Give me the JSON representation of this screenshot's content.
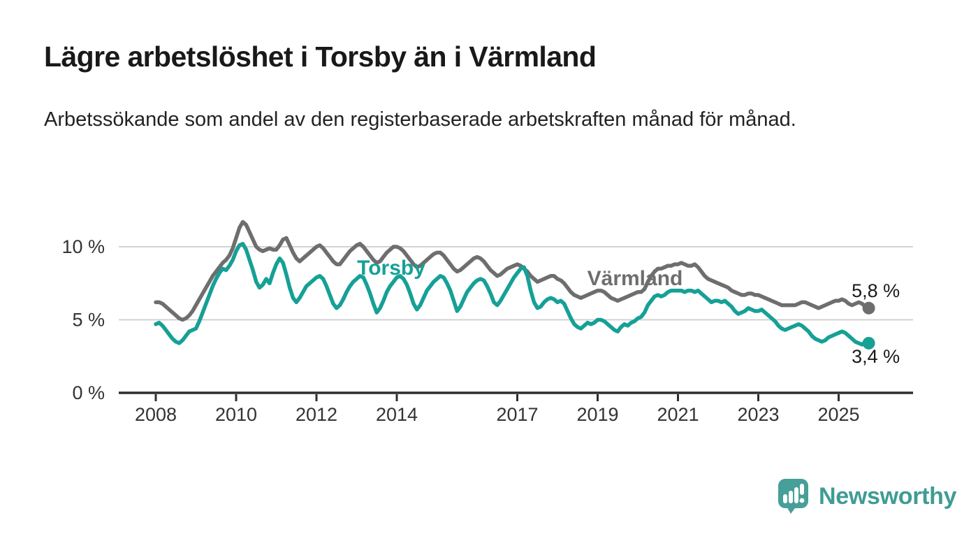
{
  "page": {
    "title": "Lägre arbetslöshet i Torsby än i Värmland",
    "subtitle": "Arbetssökande som andel av den registerbaserade arbetskraften månad för månad."
  },
  "branding": {
    "name": "Newsworthy",
    "logo_icon": "speech-bubble-bar-chart",
    "color": "#469f98"
  },
  "colors": {
    "background": "#ffffff",
    "title_text": "#191919",
    "subtitle_text": "#222222",
    "axis_line": "#2e2e2e",
    "axis_text": "#333333",
    "gridline": "#cdcdcd",
    "torsby_teal": "#16a096",
    "varmland_gray": "#6e6e6e",
    "value_label_text": "#1a1a1a"
  },
  "chart_data": {
    "type": "line",
    "title": "Lägre arbetslöshet i Torsby än i Värmland",
    "subtitle": "Arbetssökande som andel av den registerbaserade arbetskraften månad för månad.",
    "unit": "%",
    "x_frequency": "monthly",
    "x_start": "2008-01",
    "x_end": "2025-10",
    "ylim": [
      0,
      12
    ],
    "grid": "horizontal-only",
    "legend": "inline-series-labels",
    "yticks": [
      {
        "value": 0,
        "label": "0 %"
      },
      {
        "value": 5,
        "label": "5 %"
      },
      {
        "value": 10,
        "label": "10 %"
      }
    ],
    "xticks": [
      {
        "year": 2008,
        "label": "2008"
      },
      {
        "year": 2010,
        "label": "2010"
      },
      {
        "year": 2012,
        "label": "2012"
      },
      {
        "year": 2014,
        "label": "2014"
      },
      {
        "year": 2017,
        "label": "2017"
      },
      {
        "year": 2019,
        "label": "2019"
      },
      {
        "year": 2021,
        "label": "2021"
      },
      {
        "year": 2023,
        "label": "2023"
      },
      {
        "year": 2025,
        "label": "2025"
      }
    ],
    "series": [
      {
        "name": "Värmland",
        "color": "#6e6e6e",
        "end_value": 5.8,
        "end_value_label": "5,8 %",
        "values": [
          6.2,
          6.2,
          6.1,
          5.9,
          5.7,
          5.5,
          5.3,
          5.1,
          5.0,
          5.1,
          5.3,
          5.6,
          6.0,
          6.4,
          6.8,
          7.2,
          7.6,
          8.0,
          8.3,
          8.6,
          8.9,
          9.1,
          9.4,
          9.9,
          10.6,
          11.3,
          11.7,
          11.5,
          11.0,
          10.5,
          10.0,
          9.8,
          9.7,
          9.8,
          9.9,
          9.8,
          9.8,
          10.1,
          10.5,
          10.6,
          10.1,
          9.6,
          9.2,
          9.0,
          9.2,
          9.4,
          9.6,
          9.8,
          10.0,
          10.1,
          9.9,
          9.6,
          9.3,
          9.0,
          8.8,
          8.8,
          9.1,
          9.4,
          9.7,
          9.9,
          10.1,
          10.2,
          10.0,
          9.7,
          9.4,
          9.1,
          8.9,
          9.0,
          9.3,
          9.6,
          9.8,
          10.0,
          10.0,
          9.9,
          9.7,
          9.4,
          9.1,
          8.8,
          8.6,
          8.7,
          8.9,
          9.1,
          9.3,
          9.5,
          9.6,
          9.6,
          9.4,
          9.1,
          8.8,
          8.5,
          8.3,
          8.4,
          8.6,
          8.8,
          9.0,
          9.2,
          9.3,
          9.2,
          9.0,
          8.7,
          8.4,
          8.2,
          8.0,
          8.1,
          8.3,
          8.5,
          8.6,
          8.7,
          8.8,
          8.7,
          8.5,
          8.3,
          8.0,
          7.8,
          7.6,
          7.7,
          7.8,
          7.9,
          8.0,
          8.0,
          7.8,
          7.7,
          7.5,
          7.2,
          6.9,
          6.7,
          6.6,
          6.5,
          6.6,
          6.7,
          6.8,
          6.9,
          7.0,
          7.0,
          6.9,
          6.7,
          6.5,
          6.4,
          6.3,
          6.4,
          6.5,
          6.6,
          6.7,
          6.8,
          6.9,
          6.9,
          7.1,
          7.6,
          8.0,
          8.3,
          8.5,
          8.5,
          8.6,
          8.7,
          8.7,
          8.8,
          8.8,
          8.9,
          8.8,
          8.7,
          8.7,
          8.8,
          8.6,
          8.3,
          8.0,
          7.8,
          7.7,
          7.6,
          7.5,
          7.4,
          7.3,
          7.2,
          7.0,
          6.9,
          6.8,
          6.7,
          6.7,
          6.8,
          6.8,
          6.7,
          6.7,
          6.6,
          6.5,
          6.4,
          6.3,
          6.2,
          6.1,
          6.0,
          6.0,
          6.0,
          6.0,
          6.0,
          6.1,
          6.2,
          6.2,
          6.1,
          6.0,
          5.9,
          5.8,
          5.9,
          6.0,
          6.1,
          6.2,
          6.3,
          6.3,
          6.4,
          6.3,
          6.1,
          6.0,
          6.1,
          6.2,
          6.1,
          5.9,
          5.8
        ]
      },
      {
        "name": "Torsby",
        "color": "#16a096",
        "end_value": 3.4,
        "end_value_label": "3,4 %",
        "values": [
          4.7,
          4.8,
          4.6,
          4.3,
          4.0,
          3.7,
          3.5,
          3.4,
          3.6,
          3.9,
          4.2,
          4.3,
          4.4,
          4.9,
          5.5,
          6.1,
          6.7,
          7.3,
          7.8,
          8.2,
          8.5,
          8.4,
          8.7,
          9.1,
          9.7,
          10.1,
          10.2,
          9.8,
          9.1,
          8.4,
          7.6,
          7.2,
          7.4,
          7.8,
          7.5,
          8.2,
          8.8,
          9.2,
          8.9,
          8.1,
          7.2,
          6.5,
          6.2,
          6.5,
          6.9,
          7.3,
          7.5,
          7.7,
          7.9,
          8.0,
          7.8,
          7.3,
          6.7,
          6.1,
          5.8,
          6.0,
          6.4,
          6.9,
          7.3,
          7.6,
          7.8,
          8.0,
          7.9,
          7.4,
          6.8,
          6.1,
          5.5,
          5.8,
          6.3,
          6.9,
          7.3,
          7.6,
          7.9,
          8.0,
          7.8,
          7.4,
          6.8,
          6.1,
          5.7,
          6.0,
          6.5,
          7.0,
          7.3,
          7.6,
          7.8,
          8.0,
          7.9,
          7.5,
          7.0,
          6.3,
          5.6,
          5.9,
          6.4,
          6.9,
          7.2,
          7.5,
          7.7,
          7.8,
          7.7,
          7.3,
          6.8,
          6.2,
          6.0,
          6.3,
          6.7,
          7.1,
          7.5,
          7.9,
          8.2,
          8.5,
          8.6,
          8.0,
          7.0,
          6.2,
          5.8,
          5.9,
          6.2,
          6.4,
          6.5,
          6.4,
          6.2,
          6.3,
          6.1,
          5.6,
          5.1,
          4.7,
          4.5,
          4.4,
          4.6,
          4.8,
          4.7,
          4.8,
          5.0,
          5.0,
          4.9,
          4.7,
          4.5,
          4.3,
          4.2,
          4.5,
          4.7,
          4.6,
          4.8,
          4.9,
          5.1,
          5.2,
          5.5,
          6.0,
          6.3,
          6.6,
          6.7,
          6.6,
          6.7,
          6.9,
          7.0,
          7.0,
          7.0,
          7.0,
          6.9,
          7.0,
          7.0,
          6.9,
          7.0,
          6.8,
          6.6,
          6.4,
          6.2,
          6.3,
          6.3,
          6.2,
          6.3,
          6.1,
          5.9,
          5.6,
          5.4,
          5.5,
          5.6,
          5.8,
          5.7,
          5.6,
          5.6,
          5.7,
          5.5,
          5.3,
          5.1,
          4.9,
          4.6,
          4.4,
          4.3,
          4.4,
          4.5,
          4.6,
          4.7,
          4.6,
          4.4,
          4.2,
          3.9,
          3.7,
          3.6,
          3.5,
          3.6,
          3.8,
          3.9,
          4.0,
          4.1,
          4.2,
          4.1,
          3.9,
          3.7,
          3.5,
          3.4,
          3.3,
          3.5,
          3.4
        ]
      }
    ]
  }
}
